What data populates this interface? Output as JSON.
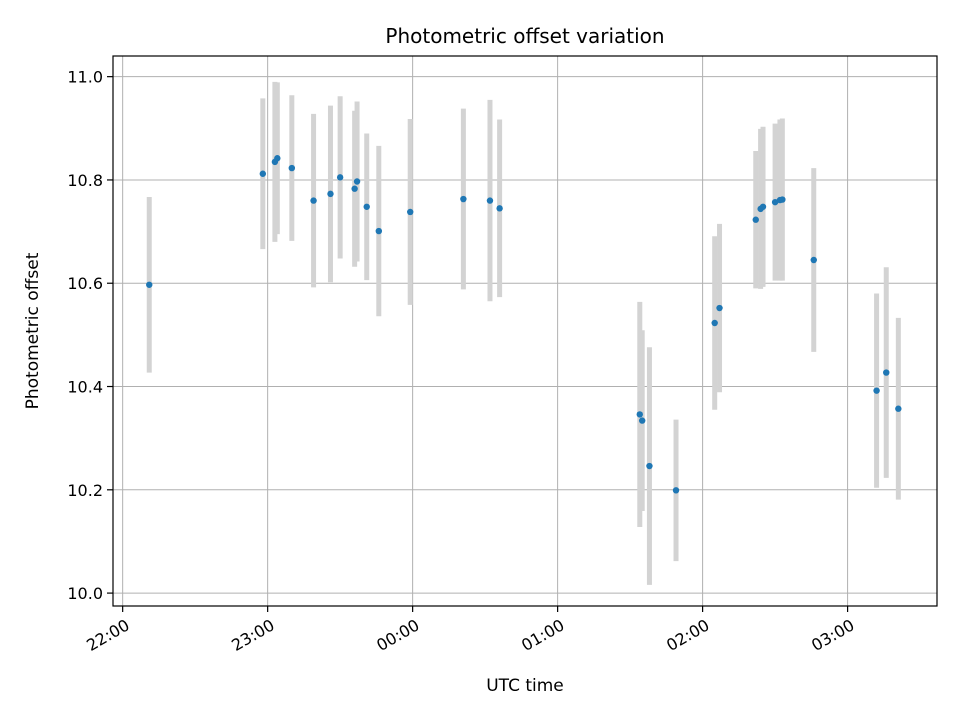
{
  "chart_data": {
    "type": "scatter",
    "title": "Photometric offset variation",
    "xlabel": "UTC time",
    "ylabel": "Photometric offset",
    "x_axis_type": "time",
    "xlim": [
      "21:56",
      "03:37"
    ],
    "ylim": [
      9.975,
      11.04
    ],
    "x_ticks": [
      "22:00",
      "23:00",
      "00:00",
      "01:00",
      "02:00",
      "03:00"
    ],
    "y_ticks": [
      "10.0",
      "10.2",
      "10.4",
      "10.6",
      "10.8",
      "11.0"
    ],
    "grid": true,
    "legend": "none",
    "colors": {
      "point": "#1f77b4",
      "error_bar": "#d3d3d3",
      "grid": "#b0b0b0"
    },
    "series": [
      {
        "points": [
          {
            "x": "22:11",
            "y": 10.597,
            "err": 0.17
          },
          {
            "x": "22:58",
            "y": 10.812,
            "err": 0.146
          },
          {
            "x": "23:03",
            "y": 10.835,
            "err": 0.155
          },
          {
            "x": "23:04",
            "y": 10.842,
            "err": 0.147
          },
          {
            "x": "23:10",
            "y": 10.823,
            "err": 0.141
          },
          {
            "x": "23:19",
            "y": 10.76,
            "err": 0.168
          },
          {
            "x": "23:26",
            "y": 10.773,
            "err": 0.171
          },
          {
            "x": "23:30",
            "y": 10.805,
            "err": 0.157
          },
          {
            "x": "23:36",
            "y": 10.783,
            "err": 0.151
          },
          {
            "x": "23:37",
            "y": 10.797,
            "err": 0.155
          },
          {
            "x": "23:41",
            "y": 10.748,
            "err": 0.142
          },
          {
            "x": "23:46",
            "y": 10.701,
            "err": 0.165
          },
          {
            "x": "23:59",
            "y": 10.738,
            "err": 0.18
          },
          {
            "x": "00:21",
            "y": 10.763,
            "err": 0.175
          },
          {
            "x": "00:32",
            "y": 10.76,
            "err": 0.195
          },
          {
            "x": "00:36",
            "y": 10.745,
            "err": 0.172
          },
          {
            "x": "01:34",
            "y": 10.346,
            "err": 0.218
          },
          {
            "x": "01:35",
            "y": 10.334,
            "err": 0.175
          },
          {
            "x": "01:38",
            "y": 10.246,
            "err": 0.23
          },
          {
            "x": "01:49",
            "y": 10.199,
            "err": 0.137
          },
          {
            "x": "02:05",
            "y": 10.523,
            "err": 0.168
          },
          {
            "x": "02:07",
            "y": 10.552,
            "err": 0.163
          },
          {
            "x": "02:22",
            "y": 10.723,
            "err": 0.133
          },
          {
            "x": "02:24",
            "y": 10.744,
            "err": 0.155
          },
          {
            "x": "02:25",
            "y": 10.748,
            "err": 0.155
          },
          {
            "x": "02:30",
            "y": 10.757,
            "err": 0.152
          },
          {
            "x": "02:32",
            "y": 10.761,
            "err": 0.156
          },
          {
            "x": "02:33",
            "y": 10.762,
            "err": 0.157
          },
          {
            "x": "02:46",
            "y": 10.645,
            "err": 0.178
          },
          {
            "x": "03:12",
            "y": 10.392,
            "err": 0.188
          },
          {
            "x": "03:16",
            "y": 10.427,
            "err": 0.204
          },
          {
            "x": "03:21",
            "y": 10.357,
            "err": 0.176
          }
        ]
      }
    ]
  }
}
